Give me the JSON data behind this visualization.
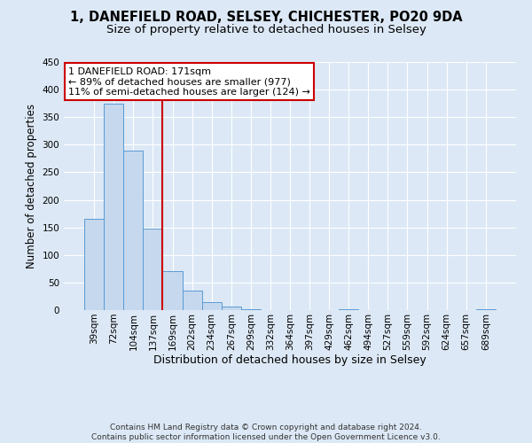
{
  "title1": "1, DANEFIELD ROAD, SELSEY, CHICHESTER, PO20 9DA",
  "title2": "Size of property relative to detached houses in Selsey",
  "xlabel": "Distribution of detached houses by size in Selsey",
  "ylabel": "Number of detached properties",
  "bin_labels": [
    "39sqm",
    "72sqm",
    "104sqm",
    "137sqm",
    "169sqm",
    "202sqm",
    "234sqm",
    "267sqm",
    "299sqm",
    "332sqm",
    "364sqm",
    "397sqm",
    "429sqm",
    "462sqm",
    "494sqm",
    "527sqm",
    "559sqm",
    "592sqm",
    "624sqm",
    "657sqm",
    "689sqm"
  ],
  "bar_heights": [
    165,
    375,
    290,
    148,
    70,
    35,
    15,
    6,
    2,
    0,
    0,
    0,
    0,
    1,
    0,
    0,
    0,
    0,
    0,
    0,
    2
  ],
  "bar_color": "#c5d8ed",
  "bar_edge_color": "#5b9bd5",
  "vline_color": "#cc0000",
  "vline_x_index": 3.5,
  "annotation_text": "1 DANEFIELD ROAD: 171sqm\n← 89% of detached houses are smaller (977)\n11% of semi-detached houses are larger (124) →",
  "annotation_box_edge_color": "#cc0000",
  "annotation_box_face_color": "#ffffff",
  "ylim": [
    0,
    450
  ],
  "yticks": [
    0,
    50,
    100,
    150,
    200,
    250,
    300,
    350,
    400,
    450
  ],
  "footer_text": "Contains HM Land Registry data © Crown copyright and database right 2024.\nContains public sector information licensed under the Open Government Licence v3.0.",
  "bg_color": "#dce8f5",
  "plot_bg_color": "#dce8f5",
  "grid_color": "#ffffff",
  "title1_fontsize": 10.5,
  "title2_fontsize": 9.5,
  "xlabel_fontsize": 9,
  "ylabel_fontsize": 8.5,
  "tick_fontsize": 7.5,
  "footer_fontsize": 6.5,
  "annot_fontsize": 8
}
